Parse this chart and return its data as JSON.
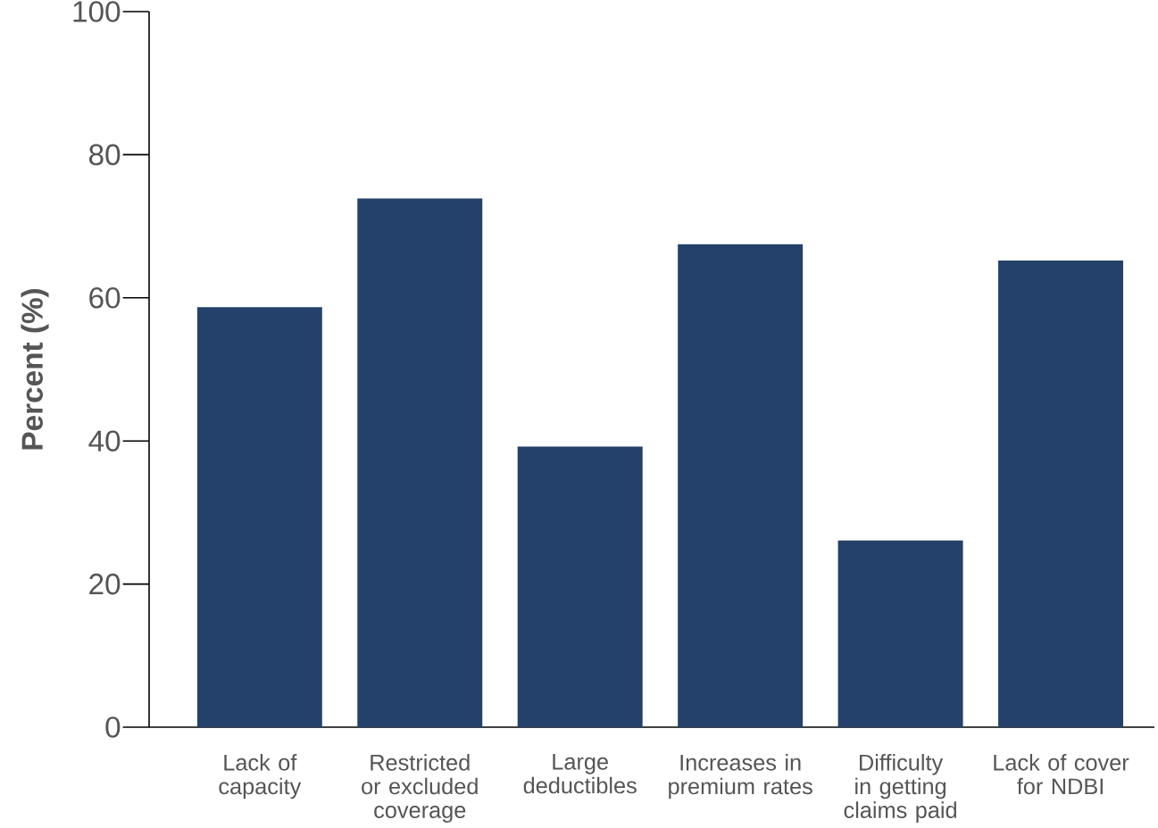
{
  "chart_data": {
    "type": "bar",
    "ylabel": "Percent (%)",
    "categories": [
      "Lack of capacity",
      "Restricted or excluded coverage",
      "Large deductibles",
      "Increases in premium rates",
      "Difficulty in getting claims paid",
      "Lack of cover for NDBI"
    ],
    "values": [
      58.7,
      73.9,
      39.2,
      67.5,
      26.1,
      65.2
    ],
    "color": "#23416b",
    "ylim": [
      0,
      100
    ],
    "yticks": [
      0,
      20,
      40,
      60,
      80,
      100
    ]
  }
}
